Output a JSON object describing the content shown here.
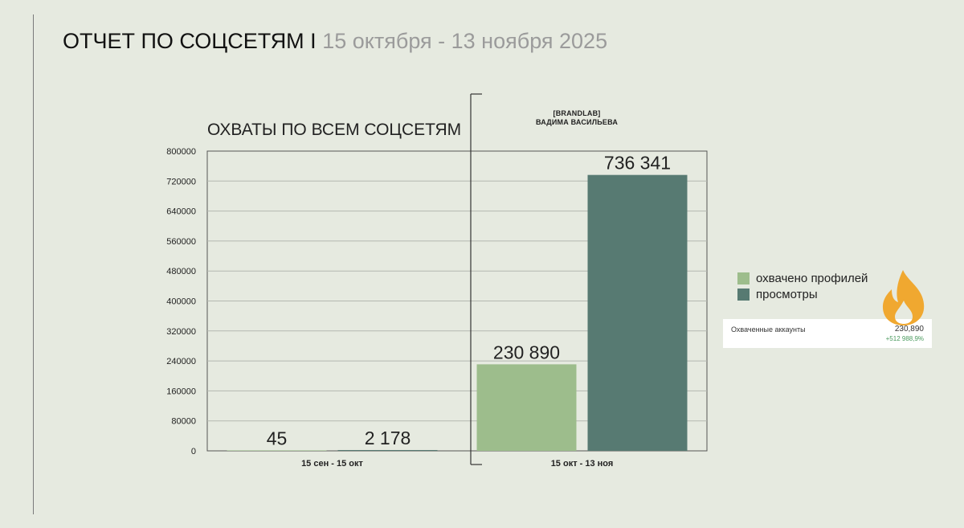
{
  "header": {
    "title": "ОТЧЕТ ПО СОЦСЕТЯМ I",
    "period": "15 октября - 13 ноября 2025"
  },
  "brand": {
    "line1": "[BRANDLAB]",
    "line2": "ВАДИМА ВАСИЛЬЕВА"
  },
  "stats": {
    "label": "Охваченные аккаунты",
    "value": "230,890",
    "delta": "+512 988,9%"
  },
  "colors": {
    "reached": "#9dbd8c",
    "views": "#577a72",
    "flame": "#f0a830"
  },
  "chart_data": {
    "type": "bar",
    "title": "ОХВАТЫ ПО ВСЕМ СОЦСЕТЯМ",
    "categories": [
      "15 сен - 15 окт",
      "15 окт - 13 ноя"
    ],
    "series": [
      {
        "name": "охвачено профилей",
        "values": [
          45,
          230890
        ],
        "labels": [
          "45",
          "230 890"
        ]
      },
      {
        "name": "просмотры",
        "values": [
          2178,
          736341
        ],
        "labels": [
          "2 178",
          "736 341"
        ]
      }
    ],
    "ylim": [
      0,
      800000
    ],
    "yticks": [
      "0",
      "80000",
      "160000",
      "240000",
      "320000",
      "400000",
      "480000",
      "560000",
      "640000",
      "720000",
      "800000"
    ],
    "grid": true,
    "legend": "right"
  }
}
